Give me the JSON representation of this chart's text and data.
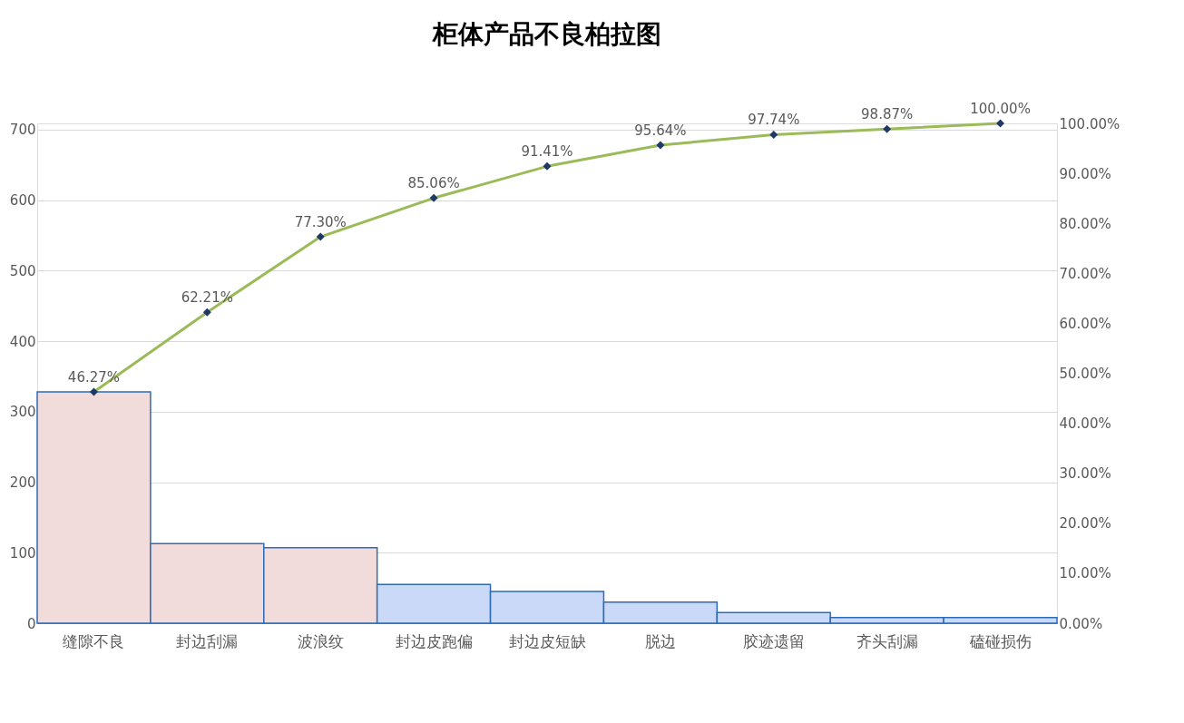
{
  "chart_data": {
    "type": "bar",
    "title": "柜体产品不良柏拉图",
    "categories": [
      "缝隙不良",
      "封边刮漏",
      "波浪纹",
      "封边皮跑偏",
      "封边皮短缺",
      "脱边",
      "胶迹遗留",
      "齐头刮漏",
      "磕碰损伤"
    ],
    "series": [
      {
        "values": [
          328,
          113,
          107,
          55,
          45,
          30,
          15,
          8,
          8
        ],
        "colors": [
          "#f2dcdb",
          "#f2dcdb",
          "#f2dcdb",
          "#c9d9f7",
          "#c9d9f7",
          "#c9d9f7",
          "#c9d9f7",
          "#c9d9f7",
          "#c9d9f7"
        ]
      },
      {
        "type": "line",
        "axis": "y2",
        "color": "#9bbb59",
        "marker": "diamond",
        "values": [
          46.27,
          62.21,
          77.3,
          85.06,
          91.41,
          95.64,
          97.74,
          98.87,
          100.0
        ],
        "value_labels": [
          "46.27%",
          "62.21%",
          "77.30%",
          "85.06%",
          "91.41%",
          "95.64%",
          "97.74%",
          "98.87%",
          "100.00%"
        ]
      }
    ],
    "ylim": [
      0,
      709
    ],
    "yticks": [
      0,
      100,
      200,
      300,
      400,
      500,
      600,
      700
    ],
    "y2lim": [
      0,
      100
    ],
    "y2ticks": [
      {
        "value": 0,
        "label": "0.00%"
      },
      {
        "value": 10,
        "label": "10.00%"
      },
      {
        "value": 20,
        "label": "20.00%"
      },
      {
        "value": 30,
        "label": "30.00%"
      },
      {
        "value": 40,
        "label": "40.00%"
      },
      {
        "value": 50,
        "label": "50.00%"
      },
      {
        "value": 60,
        "label": "60.00%"
      },
      {
        "value": 70,
        "label": "70.00%"
      },
      {
        "value": 80,
        "label": "80.00%"
      },
      {
        "value": 90,
        "label": "90.00%"
      },
      {
        "value": 100,
        "label": "100.00%"
      }
    ],
    "grid": "y"
  }
}
